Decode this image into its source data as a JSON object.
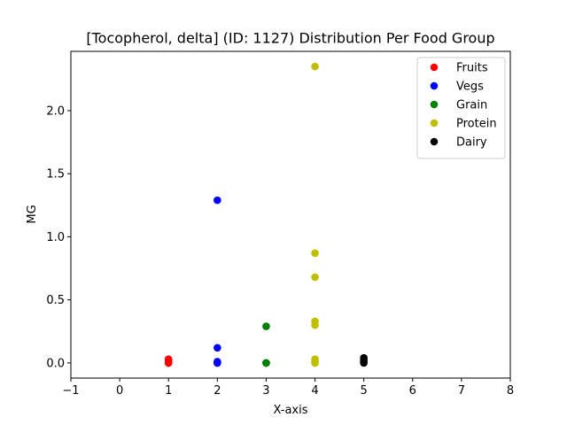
{
  "chart_data": {
    "type": "scatter",
    "title": "[Tocopherol, delta] (ID: 1127) Distribution Per Food Group",
    "xlabel": "X-axis",
    "ylabel": "MG",
    "xlim": [
      -1,
      8
    ],
    "ylim": [
      -0.12,
      2.47
    ],
    "x_ticks": [
      -1,
      0,
      1,
      2,
      3,
      4,
      5,
      6,
      7,
      8
    ],
    "x_tick_labels": [
      "−1",
      "0",
      "1",
      "2",
      "3",
      "4",
      "5",
      "6",
      "7",
      "8"
    ],
    "y_ticks": [
      0.0,
      0.5,
      1.0,
      1.5,
      2.0
    ],
    "y_tick_labels": [
      "0.0",
      "0.5",
      "1.0",
      "1.5",
      "2.0"
    ],
    "grid": false,
    "legend_position": "top-right",
    "series": [
      {
        "name": "Fruits",
        "color": "#ff0000",
        "points": [
          [
            1,
            0.0
          ],
          [
            1,
            0.01
          ],
          [
            1,
            0.02
          ],
          [
            1,
            0.03
          ],
          [
            1,
            0.0
          ]
        ]
      },
      {
        "name": "Vegs",
        "color": "#0000ff",
        "points": [
          [
            2,
            1.29
          ],
          [
            2,
            0.12
          ],
          [
            2,
            0.0
          ],
          [
            2,
            0.01
          ],
          [
            2,
            0.0
          ]
        ]
      },
      {
        "name": "Grain",
        "color": "#008000",
        "points": [
          [
            3,
            0.29
          ],
          [
            3,
            0.0
          ],
          [
            3,
            0.0
          ],
          [
            3,
            0.0
          ]
        ]
      },
      {
        "name": "Protein",
        "color": "#bfbf00",
        "points": [
          [
            4,
            2.35
          ],
          [
            4,
            0.87
          ],
          [
            4,
            0.68
          ],
          [
            4,
            0.33
          ],
          [
            4,
            0.3
          ],
          [
            4,
            0.03
          ],
          [
            4,
            0.01
          ],
          [
            4,
            0.0
          ]
        ]
      },
      {
        "name": "Dairy",
        "color": "#000000",
        "points": [
          [
            5,
            0.04
          ],
          [
            5,
            0.02
          ],
          [
            5,
            0.01
          ],
          [
            5,
            0.0
          ]
        ]
      }
    ]
  }
}
